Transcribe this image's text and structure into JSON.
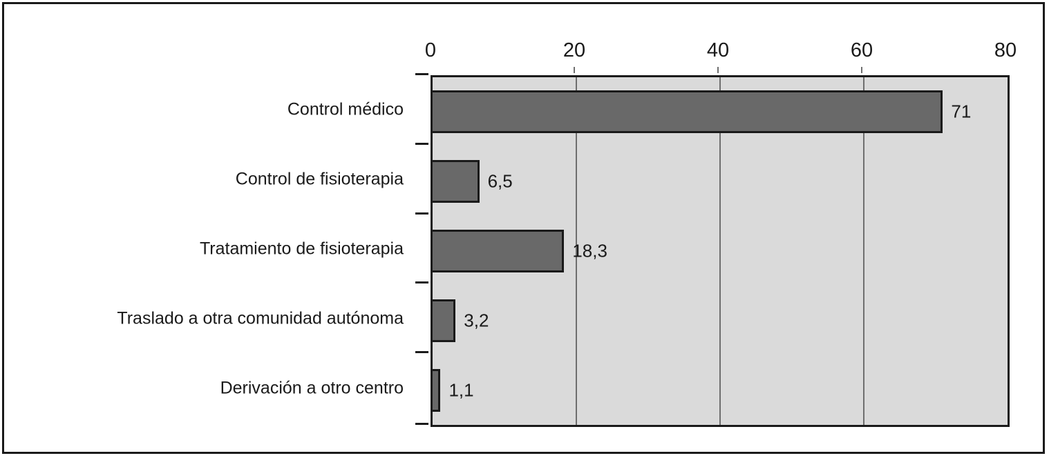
{
  "chart_data": {
    "type": "bar",
    "orientation": "horizontal",
    "title": "",
    "xlabel": "",
    "ylabel": "",
    "categories": [
      "Control médico",
      "Control de fisioterapia",
      "Tratamiento de fisioterapia",
      "Traslado a otra comunidad autónoma",
      "Derivación a otro centro"
    ],
    "values": [
      71,
      6.5,
      18.3,
      3.2,
      1.1
    ],
    "value_labels": [
      "71",
      "6,5",
      "18,3",
      "3,2",
      "1,1"
    ],
    "xlim": [
      0,
      80
    ],
    "x_ticks": [
      0,
      20,
      40,
      60,
      80
    ],
    "x_tick_labels": [
      "0",
      "20",
      "40",
      "60",
      "80"
    ],
    "gridline_positions": [
      20,
      40,
      60
    ],
    "grid": true,
    "legend": "none",
    "axis_position": "top",
    "colors": {
      "bar_fill": "#696969",
      "bar_border": "#1a1a1a",
      "plot_background": "#dadada",
      "plot_border": "#1a1a1a",
      "gridline": "#6e6e6e",
      "text": "#1a1a1a",
      "figure_border": "#1a1a1a",
      "figure_background": "#ffffff"
    }
  }
}
